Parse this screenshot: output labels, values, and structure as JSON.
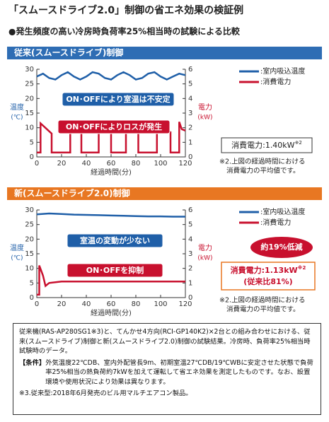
{
  "header": {
    "title": "「スムースドライブ2.0」制御の省エネ効果の検証例",
    "subtitle": "●発生頻度の高い冷房時負荷率25%相当時の試験による比較"
  },
  "chart_data": [
    {
      "type": "line",
      "panel_title": "従来(スムースドライブ)制御",
      "panel_color": "#2e6db4",
      "x_label": "経過時間(分)",
      "y_label": "温度",
      "y_unit": "(℃)",
      "y2_label": "電力",
      "y2_unit": "(kW)",
      "xlim": [
        0,
        120
      ],
      "xticks": [
        0,
        20,
        40,
        60,
        80,
        100,
        120
      ],
      "ylim": [
        0,
        30
      ],
      "yticks": [
        0,
        5,
        10,
        15,
        20,
        25,
        30
      ],
      "y2lim": [
        0,
        6
      ],
      "y2ticks": [
        0,
        1,
        2,
        3,
        4,
        5,
        6
      ],
      "series": [
        {
          "name": ":室内吸込温度",
          "color": "#1f5fa8",
          "x": [
            0,
            5,
            10,
            15,
            20,
            25,
            30,
            35,
            40,
            45,
            50,
            55,
            60,
            65,
            70,
            75,
            80,
            85,
            90,
            95,
            100,
            105,
            110,
            115,
            120
          ],
          "values": [
            27.5,
            28.5,
            27,
            26.5,
            28,
            29,
            27.5,
            26.5,
            27.5,
            29,
            28.5,
            27,
            26.5,
            28,
            29,
            28,
            26.5,
            27,
            28.5,
            29,
            27.5,
            26.5,
            27.5,
            28.5,
            28
          ]
        },
        {
          "name": ":消費電力",
          "color": "#c8102e",
          "axis": "y2",
          "x": [
            0,
            3,
            3,
            12,
            12,
            27,
            27,
            29,
            36,
            36,
            50,
            50,
            52,
            60,
            60,
            72,
            72,
            74,
            82,
            82,
            97,
            97,
            99,
            108,
            108,
            115,
            115,
            117,
            120
          ],
          "values": [
            0.3,
            0.3,
            2.3,
            1.6,
            0.3,
            0.3,
            2.5,
            2.0,
            1.7,
            0.3,
            0.3,
            2.4,
            1.9,
            1.7,
            0.3,
            0.3,
            2.5,
            2.0,
            1.7,
            0.3,
            0.3,
            2.4,
            1.9,
            1.7,
            0.3,
            0.3,
            2.4,
            1.9,
            1.8
          ]
        }
      ],
      "annotations": [
        {
          "text": "ON･OFFにより室温は不安定",
          "color": "#1f5fa8"
        },
        {
          "text": "ON･OFFによりロスが発生",
          "color": "#c8102e"
        }
      ],
      "result": [
        "消費電力:1.40kW",
        "※2"
      ],
      "note": [
        "※2.上図の経過時間における",
        "消費電力の平均値です。"
      ]
    },
    {
      "type": "line",
      "panel_title": "新(スムースドライブ2.0)制御",
      "panel_color": "#e87722",
      "x_label": "経過時間(分)",
      "y_label": "温度",
      "y_unit": "(℃)",
      "y2_label": "電力",
      "y2_unit": "(kW)",
      "xlim": [
        0,
        120
      ],
      "xticks": [
        0,
        20,
        40,
        60,
        80,
        100,
        120
      ],
      "ylim": [
        0,
        30
      ],
      "yticks": [
        0,
        5,
        10,
        15,
        20,
        25,
        30
      ],
      "y2lim": [
        0,
        6
      ],
      "y2ticks": [
        0,
        1,
        2,
        3,
        4,
        5,
        6
      ],
      "series": [
        {
          "name": ":室内吸込温度",
          "color": "#1f5fa8",
          "x": [
            0,
            10,
            20,
            30,
            40,
            50,
            60,
            70,
            80,
            90,
            100,
            110,
            120
          ],
          "values": [
            28.5,
            28.8,
            28.6,
            28.4,
            28.3,
            28.2,
            28.1,
            28.0,
            27.9,
            27.8,
            27.8,
            27.7,
            27.7
          ]
        },
        {
          "name": ":消費電力",
          "color": "#c8102e",
          "axis": "y2",
          "x": [
            0,
            2,
            2,
            5,
            7,
            10,
            20,
            40,
            60,
            80,
            100,
            120
          ],
          "values": [
            0.2,
            0.2,
            2.2,
            1.5,
            0.8,
            1.0,
            1.1,
            1.1,
            1.1,
            1.1,
            1.1,
            1.1
          ]
        }
      ],
      "annotations": [
        {
          "text": "室温の変動が少ない",
          "color": "#1f5fa8"
        },
        {
          "text": "ON･OFFを抑制",
          "color": "#c8102e"
        }
      ],
      "badge": "約19%低減",
      "result": [
        "消費電力:1.13kW",
        "※2",
        "(従来比81%)"
      ],
      "note": [
        "※2.上図の経過時間における",
        "消費電力の平均値です。"
      ]
    }
  ],
  "footer": {
    "text": "従来機(RAS-AP280SG1※3)と、てんかせ4方向(RCI-GP140K2)×2台との組み合わせにおける、従来(スムースドライブ)制御と新(スムースドライブ2.0)制御の試験結果。冷房時、負荷率25%相当時試験時のデータ。",
    "condition_label": "【条件】",
    "condition": "外気温度22℃DB、室内外配管長9m、初期室温27℃DB/19℃WBに安定させた状態で負荷率25%相当の熱負荷約7kWを加えて運転して省エネ効果を測定したものです。なお、設置環境や使用状況により効果は異なります。",
    "note": "※3.従来型:2018年6月発売のビル用マルチエアコン製品。"
  }
}
